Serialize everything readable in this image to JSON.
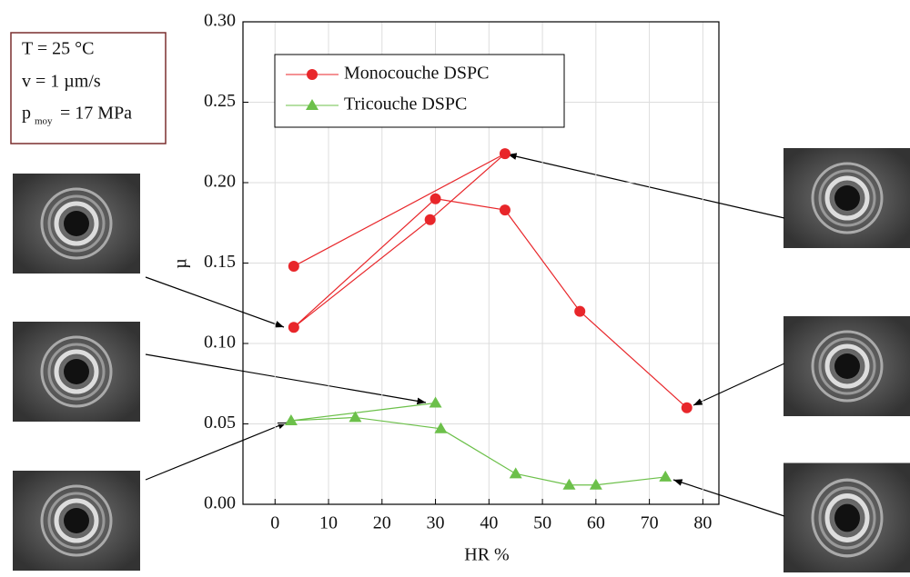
{
  "chart_data": {
    "type": "line",
    "xlabel": "HR %",
    "ylabel": "µ",
    "xlim": [
      -6,
      83
    ],
    "xticks": [
      0,
      10,
      20,
      30,
      40,
      50,
      60,
      70,
      80
    ],
    "ylim": [
      0,
      0.3
    ],
    "yticks": [
      {
        "value": 0,
        "label": "0.00"
      },
      {
        "value": 0.05,
        "label": "0.05"
      },
      {
        "value": 0.1,
        "label": "0.10"
      },
      {
        "value": 0.15,
        "label": "0.15"
      },
      {
        "value": 0.2,
        "label": "0.20"
      },
      {
        "value": 0.25,
        "label": "0.25"
      },
      {
        "value": 0.3,
        "label": "0.30"
      }
    ],
    "grid": true,
    "legend": "upper left",
    "series": [
      {
        "name": "Monocouche DSPC",
        "color": "#e8262a",
        "marker": "circle",
        "x": [
          77,
          57,
          43,
          30,
          3.5,
          29,
          43,
          3.5
        ],
        "values": [
          0.06,
          0.12,
          0.183,
          0.19,
          0.11,
          0.177,
          0.218,
          0.148
        ]
      },
      {
        "name": "Tricouche DSPC",
        "color": "#6cc04a",
        "marker": "triangle",
        "x": [
          73,
          60,
          55,
          45,
          31,
          15,
          3,
          30
        ],
        "values": [
          0.017,
          0.012,
          0.012,
          0.019,
          0.047,
          0.054,
          0.052,
          0.063
        ]
      }
    ],
    "annotation": {
      "line1": "T = 25 °C",
      "line2": "v = 1 µm/s",
      "line3_main": "p",
      "line3_sub": "moy",
      "line3_rest": "= 17 MPa"
    }
  }
}
